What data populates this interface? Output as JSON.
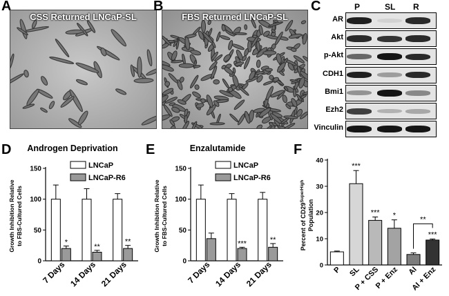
{
  "panels": {
    "A": {
      "letter": "A",
      "title": "CSS Returned LNCaP-SL"
    },
    "B": {
      "letter": "B",
      "title": "FBS Returned LNCaP-SL"
    },
    "C": {
      "letter": "C",
      "lanes": [
        "P",
        "SL",
        "R"
      ],
      "rows": [
        {
          "label": "AR",
          "intensity": [
            0.9,
            0.05,
            0.85
          ]
        },
        {
          "label": "Akt",
          "intensity": [
            0.85,
            0.8,
            0.85
          ]
        },
        {
          "label": "p-Akt",
          "intensity": [
            0.55,
            0.95,
            0.85
          ]
        },
        {
          "label": "CDH1",
          "intensity": [
            0.9,
            0.3,
            0.85
          ]
        },
        {
          "label": "Bmi1",
          "intensity": [
            0.35,
            0.95,
            0.4
          ]
        },
        {
          "label": "Ezh2",
          "intensity": [
            0.75,
            0.2,
            0.25
          ]
        },
        {
          "label": "Vinculin",
          "intensity": [
            0.95,
            0.95,
            0.95
          ]
        }
      ]
    },
    "D": {
      "letter": "D"
    },
    "E": {
      "letter": "E"
    },
    "F": {
      "letter": "F"
    }
  },
  "chart_data": [
    {
      "id": "D",
      "type": "bar",
      "title": "Androgen Deprivation",
      "ylabel": "Growth Inhibition Relative to FBS-Cultured Cells",
      "ylabel_lines": [
        "Growth Inhibition Relative",
        "to FBS-Cultured Cells"
      ],
      "ylim": [
        0,
        150
      ],
      "yticks": [
        "0",
        "50",
        "100",
        "150"
      ],
      "categories": [
        "7 Days",
        "14 Days",
        "21 Days"
      ],
      "series": [
        {
          "name": "LNCaP",
          "color": "#ffffff",
          "values": [
            100,
            100,
            100
          ],
          "errors": [
            23,
            17,
            9
          ]
        },
        {
          "name": "LNCaP-R6",
          "color": "#9a9a9a",
          "values": [
            20,
            14,
            20
          ],
          "errors": [
            4,
            3,
            5
          ]
        }
      ],
      "annotations": [
        "*",
        "**",
        "**"
      ]
    },
    {
      "id": "E",
      "type": "bar",
      "title": "Enzalutamide",
      "ylabel": "Growth Inhibition Relative to FBS-Cultured Cells",
      "ylabel_lines": [
        "Growth Inhibition Relative",
        "to FBS-Cultured Cells"
      ],
      "ylim": [
        0,
        150
      ],
      "yticks": [
        "0",
        "50",
        "100",
        "150"
      ],
      "categories": [
        "7 Days",
        "14 Days",
        "21 Days"
      ],
      "series": [
        {
          "name": "LNCaP",
          "color": "#ffffff",
          "values": [
            100,
            100,
            100
          ],
          "errors": [
            23,
            9,
            11
          ]
        },
        {
          "name": "LNCaP-R6",
          "color": "#9a9a9a",
          "values": [
            36,
            20,
            22
          ],
          "errors": [
            9,
            2,
            6
          ]
        }
      ],
      "annotations": [
        "",
        "***",
        "**"
      ]
    },
    {
      "id": "F",
      "type": "bar",
      "ylabel": "Percent of CD29 SuperHigh Population",
      "ylabel_parts": {
        "line1": "Percent of CD29",
        "superscript": "SuperHigh",
        "line2": "Population"
      },
      "ylim": [
        0,
        40
      ],
      "yticks": [
        "0",
        "10",
        "20",
        "30",
        "40"
      ],
      "categories": [
        "P",
        "SL",
        "P + CSS",
        "P + Enz",
        "AI",
        "AI + Enz"
      ],
      "values": [
        5,
        31,
        17,
        14,
        4,
        9.5
      ],
      "errors": [
        0.3,
        5,
        1.3,
        3.2,
        0.6,
        0.4
      ],
      "colors": [
        "#ffffff",
        "#d6d6d6",
        "#b9b9b9",
        "#a3a3a3",
        "#7d7d7d",
        "#333333"
      ],
      "annotations": [
        "",
        "***",
        "***",
        "*",
        "",
        "***"
      ],
      "bracket": {
        "label": "**",
        "from": 4,
        "to": 5
      }
    }
  ]
}
